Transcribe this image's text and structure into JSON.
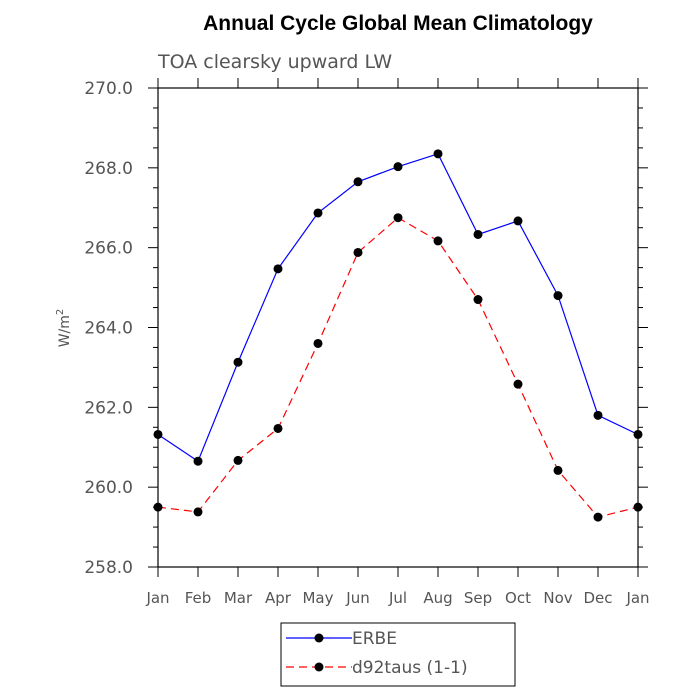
{
  "chart_data": {
    "type": "line",
    "title": "Annual Cycle Global Mean Climatology",
    "subtitle": "TOA clearsky upward LW",
    "ylabel": "W/m",
    "ylabel_superscript": "2",
    "xlabel": "",
    "categories": [
      "Jan",
      "Feb",
      "Mar",
      "Apr",
      "May",
      "Jun",
      "Jul",
      "Aug",
      "Sep",
      "Oct",
      "Nov",
      "Dec",
      "Jan"
    ],
    "ylim": [
      258.0,
      270.0
    ],
    "yticks": [
      "258.0",
      "260.0",
      "262.0",
      "264.0",
      "266.0",
      "268.0",
      "270.0"
    ],
    "grid": false,
    "legend_position": "bottom-center",
    "series": [
      {
        "name": "ERBE",
        "color": "#0000ff",
        "line_style": "solid",
        "marker": "filled-circle",
        "values": [
          261.32,
          260.65,
          263.13,
          265.47,
          266.87,
          267.65,
          268.03,
          268.35,
          266.33,
          266.67,
          264.8,
          261.8,
          261.32
        ]
      },
      {
        "name": "d92taus (1-1)",
        "color": "#ff0000",
        "line_style": "dashed",
        "marker": "filled-circle",
        "values": [
          259.5,
          259.38,
          260.67,
          261.47,
          263.6,
          265.88,
          266.75,
          266.17,
          264.7,
          262.58,
          260.42,
          259.25,
          259.5
        ]
      }
    ]
  }
}
